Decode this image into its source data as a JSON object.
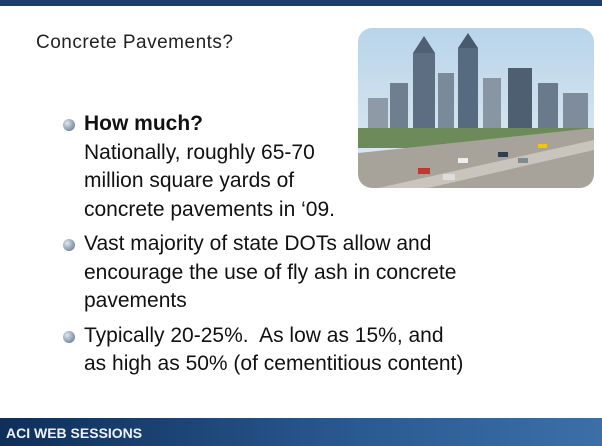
{
  "slide": {
    "title": "Concrete Pavements?",
    "bullets": [
      {
        "heading": "How much?",
        "lines": [
          "Nationally, roughly 65-70",
          "million square yards of",
          "concrete pavements in ‘09."
        ]
      },
      {
        "lines": [
          "Vast majority of state DOTs allow and",
          "encourage the use of fly ash in concrete",
          "pavements"
        ]
      },
      {
        "lines": [
          "Typically 20-25%.  As low as 15%, and",
          "as high as 50% (of cementitious content)"
        ]
      }
    ]
  },
  "footer": {
    "text": "ACI WEB SESSIONS"
  }
}
